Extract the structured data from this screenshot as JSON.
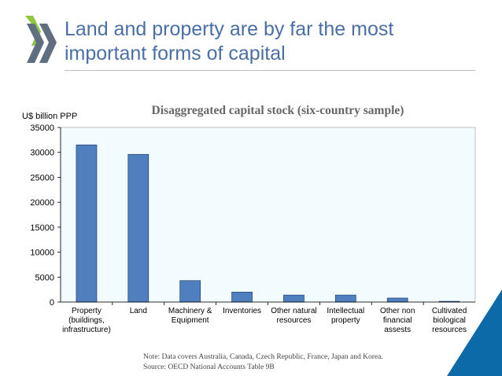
{
  "slide": {
    "title_line1": "Land and property are by far the most",
    "title_line2": "important forms of capital",
    "note_line1": "Note: Data covers Australia, Canada, Czech Republic, France, Japan and Korea.",
    "note_line2": "Source: OECD National Accounts Table 9B"
  },
  "colors": {
    "bar": "#4f7fbf",
    "bar_stroke": "#1f3f6f",
    "plot_bg": "#f2fbfd",
    "title": "#4a6fa5",
    "logo": "#5f6f7f",
    "logo_accent": "#8dc63f",
    "corner": "#0d6aa8"
  },
  "chart_data": {
    "type": "bar",
    "title": "Disaggregated capital stock (six-country sample)",
    "ylabel": "U$ billion PPP",
    "xlabel": "",
    "ylim": [
      0,
      35000
    ],
    "yticks": [
      0,
      5000,
      10000,
      15000,
      20000,
      25000,
      30000,
      35000
    ],
    "grid": false,
    "categories": [
      [
        "Property",
        "(buildings,",
        "infrastructure)"
      ],
      [
        "Land"
      ],
      [
        "Machinery &",
        "Equipment"
      ],
      [
        "Inventories"
      ],
      [
        "Other natural",
        "resources"
      ],
      [
        "Intellectual",
        "property"
      ],
      [
        "Other non",
        "financial",
        "assests"
      ],
      [
        "Cultivated",
        "biological",
        "resources"
      ]
    ],
    "values": [
      31500,
      29600,
      4300,
      2000,
      1400,
      1400,
      800,
      150
    ]
  }
}
